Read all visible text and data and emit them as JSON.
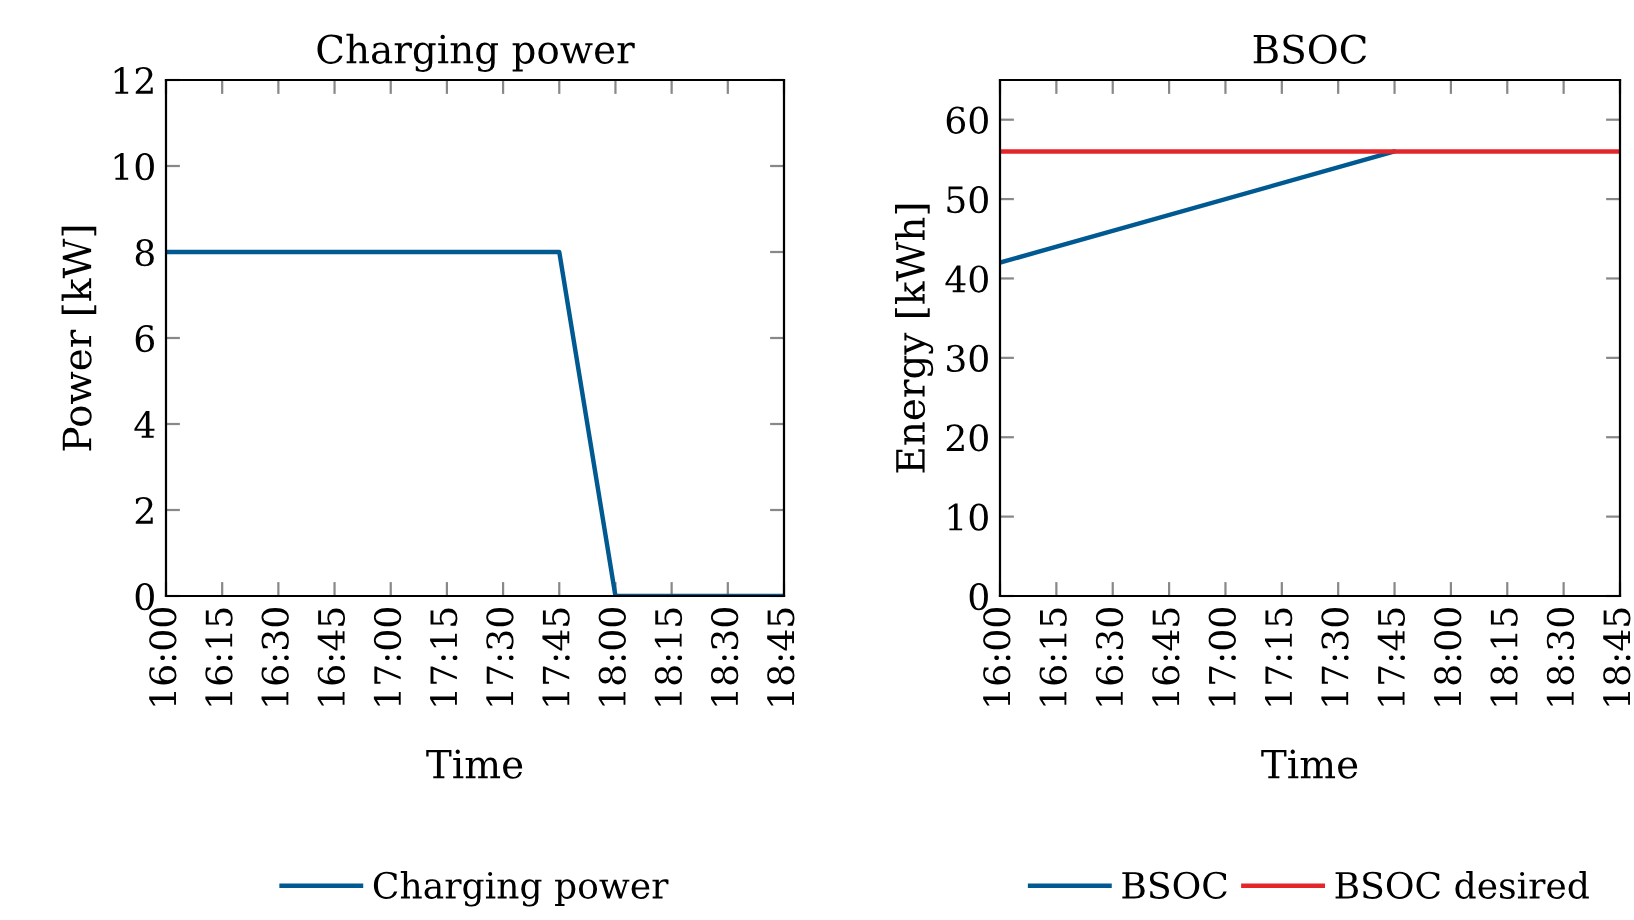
{
  "chart_data": [
    {
      "type": "line",
      "title": "Charging power",
      "xlabel": "Time",
      "ylabel": "Power [kW]",
      "legend": "bottom",
      "grid": false,
      "xlim": [
        16,
        18.75
      ],
      "xticks": [
        {
          "value": 16,
          "label": "16:00"
        },
        {
          "value": 16.25,
          "label": "16:15"
        },
        {
          "value": 16.5,
          "label": "16:30"
        },
        {
          "value": 16.75,
          "label": "16:45"
        },
        {
          "value": 17,
          "label": "17:00"
        },
        {
          "value": 17.25,
          "label": "17:15"
        },
        {
          "value": 17.5,
          "label": "17:30"
        },
        {
          "value": 17.75,
          "label": "17:45"
        },
        {
          "value": 18,
          "label": "18:00"
        },
        {
          "value": 18.25,
          "label": "18:15"
        },
        {
          "value": 18.5,
          "label": "18:30"
        },
        {
          "value": 18.75,
          "label": "18:45"
        }
      ],
      "ylim": [
        0,
        12
      ],
      "yticks": [
        0,
        2,
        4,
        6,
        8,
        10,
        12
      ],
      "series": [
        {
          "name": "Charging power",
          "color": "#005a91",
          "x": [
            16,
            17.75,
            18,
            18.75
          ],
          "values": [
            8,
            8,
            0,
            0
          ]
        }
      ]
    },
    {
      "type": "line",
      "title": "BSOC",
      "xlabel": "Time",
      "ylabel": "Energy [kWh]",
      "legend": "bottom",
      "grid": false,
      "xlim": [
        16,
        18.75
      ],
      "xticks": [
        {
          "value": 16,
          "label": "16:00"
        },
        {
          "value": 16.25,
          "label": "16:15"
        },
        {
          "value": 16.5,
          "label": "16:30"
        },
        {
          "value": 16.75,
          "label": "16:45"
        },
        {
          "value": 17,
          "label": "17:00"
        },
        {
          "value": 17.25,
          "label": "17:15"
        },
        {
          "value": 17.5,
          "label": "17:30"
        },
        {
          "value": 17.75,
          "label": "17:45"
        },
        {
          "value": 18,
          "label": "18:00"
        },
        {
          "value": 18.25,
          "label": "18:15"
        },
        {
          "value": 18.5,
          "label": "18:30"
        },
        {
          "value": 18.75,
          "label": "18:45"
        }
      ],
      "ylim": [
        0,
        65
      ],
      "yticks": [
        0,
        10,
        20,
        30,
        40,
        50,
        60
      ],
      "series": [
        {
          "name": "BSOC",
          "color": "#005a91",
          "x": [
            16,
            17.75
          ],
          "values": [
            42,
            56
          ]
        },
        {
          "name": "BSOC desired",
          "color": "#e3262a",
          "x": [
            16,
            18.75
          ],
          "values": [
            56,
            56
          ]
        }
      ]
    }
  ]
}
